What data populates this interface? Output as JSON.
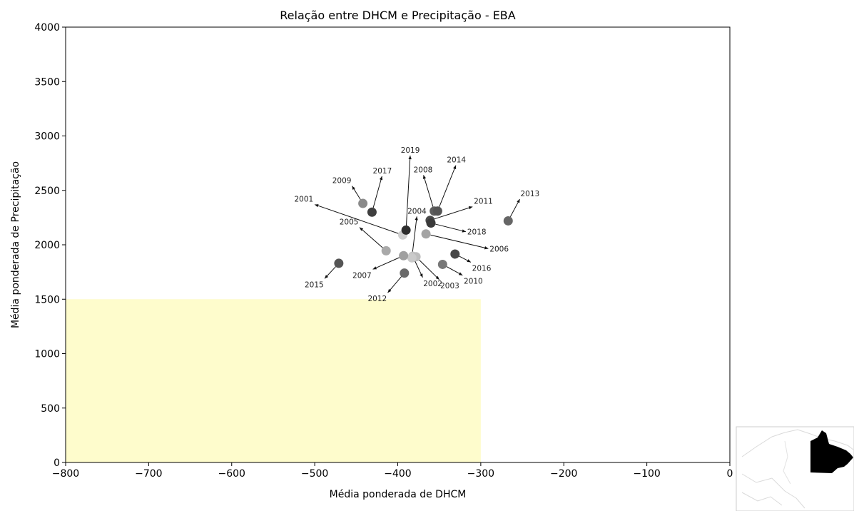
{
  "chart_data": {
    "type": "scatter",
    "title": "Relação entre DHCM e Precipitação - EBA",
    "xlabel": "Média ponderada de DHCM",
    "ylabel": "Média ponderada de Precipitação",
    "xlim": [
      -800,
      0
    ],
    "ylim": [
      0,
      4000
    ],
    "xticks": [
      -800,
      -700,
      -600,
      -500,
      -400,
      -300,
      -200,
      -100,
      0
    ],
    "xtick_labels": [
      "−800",
      "−700",
      "−600",
      "−500",
      "−400",
      "−300",
      "−200",
      "−100",
      "0"
    ],
    "yticks": [
      0,
      500,
      1000,
      1500,
      2000,
      2500,
      3000,
      3500,
      4000
    ],
    "ytick_labels": [
      "0",
      "500",
      "1000",
      "1500",
      "2000",
      "2500",
      "3000",
      "3500",
      "4000"
    ],
    "grid": false,
    "legend": "none",
    "highlight_region": {
      "x": [
        -800,
        -300
      ],
      "y": [
        0,
        1500
      ],
      "color": "#fefccc"
    },
    "points": [
      {
        "year": "2001",
        "x": -394,
        "y": 2090,
        "color": "#cfcfcf",
        "label_x": -500,
        "label_y": 2370
      },
      {
        "year": "2002",
        "x": -382,
        "y": 1895,
        "color": "#c2c2c2",
        "label_x": -370,
        "label_y": 1700
      },
      {
        "year": "2003",
        "x": -378,
        "y": 1890,
        "color": "#bdbdbd",
        "label_x": -350,
        "label_y": 1680
      },
      {
        "year": "2004",
        "x": -383,
        "y": 1880,
        "color": "#cacaca",
        "label_x": -377,
        "label_y": 2260
      },
      {
        "year": "2005",
        "x": -414,
        "y": 1945,
        "color": "#a9a9a9",
        "label_x": -446,
        "label_y": 2160
      },
      {
        "year": "2006",
        "x": -366,
        "y": 2100,
        "color": "#a4a4a4",
        "label_x": -291,
        "label_y": 1965
      },
      {
        "year": "2007",
        "x": -393,
        "y": 1900,
        "color": "#a0a0a0",
        "label_x": -430,
        "label_y": 1775
      },
      {
        "year": "2008",
        "x": -356,
        "y": 2310,
        "color": "#5e5e5e",
        "label_x": -369,
        "label_y": 2640
      },
      {
        "year": "2009",
        "x": -442,
        "y": 2380,
        "color": "#8a8a8a",
        "label_x": -455,
        "label_y": 2540
      },
      {
        "year": "2010",
        "x": -346,
        "y": 1820,
        "color": "#777777",
        "label_x": -322,
        "label_y": 1720
      },
      {
        "year": "2011",
        "x": -361,
        "y": 2225,
        "color": "#4a4a4a",
        "label_x": -310,
        "label_y": 2350
      },
      {
        "year": "2012",
        "x": -392,
        "y": 1740,
        "color": "#6a6a6a",
        "label_x": -412,
        "label_y": 1560
      },
      {
        "year": "2013",
        "x": -267,
        "y": 2220,
        "color": "#666666",
        "label_x": -253,
        "label_y": 2420
      },
      {
        "year": "2014",
        "x": -352,
        "y": 2310,
        "color": "#555555",
        "label_x": -330,
        "label_y": 2730
      },
      {
        "year": "2015",
        "x": -471,
        "y": 1830,
        "color": "#555555",
        "label_x": -488,
        "label_y": 1690
      },
      {
        "year": "2016",
        "x": -331,
        "y": 1915,
        "color": "#484848",
        "label_x": -312,
        "label_y": 1840
      },
      {
        "year": "2017",
        "x": -431,
        "y": 2300,
        "color": "#3f3f3f",
        "label_x": -419,
        "label_y": 2630
      },
      {
        "year": "2018",
        "x": -360,
        "y": 2200,
        "color": "#3a3a3a",
        "label_x": -318,
        "label_y": 2120
      },
      {
        "year": "2019",
        "x": -390,
        "y": 2135,
        "color": "#2e2e2e",
        "label_x": -385,
        "label_y": 2820
      }
    ]
  },
  "inset_map": {
    "icon": "region-locator-map-icon",
    "region_color": "#000000",
    "outline_color": "#d8d8d8"
  }
}
